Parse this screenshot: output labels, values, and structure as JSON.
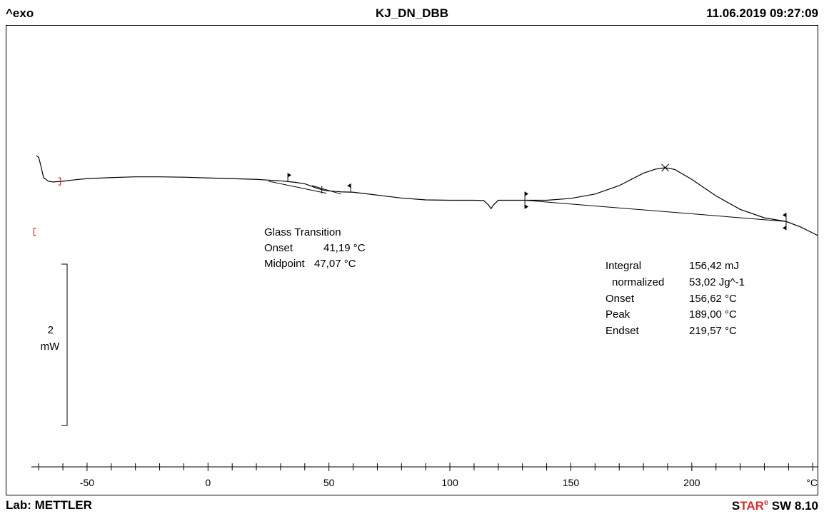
{
  "header": {
    "exo": "^exo",
    "title": "KJ_DN_DBB",
    "datetime": "11.06.2019 09:27:09"
  },
  "footer": {
    "lab": "Lab: METTLER",
    "star_prefix": "S",
    "star_red": "TAR",
    "star_sup": "e",
    "star_suffix": " SW 8.10"
  },
  "scale_bar": {
    "value": "2",
    "unit": "mW"
  },
  "glass_transition": {
    "title": "Glass Transition",
    "rows": [
      {
        "label": "Onset",
        "value": "41,19 °C"
      },
      {
        "label": "Midpoint",
        "value": "47,07 °C"
      }
    ]
  },
  "peak_analysis": {
    "rows": [
      {
        "label": "Integral",
        "value": "156,42 mJ"
      },
      {
        "label": "normalized",
        "value": "53,02 Jg^-1"
      },
      {
        "label": "Onset",
        "value": "156,62 °C"
      },
      {
        "label": "Peak",
        "value": "189,00 °C"
      },
      {
        "label": "Endset",
        "value": "219,57 °C"
      }
    ]
  },
  "colors": {
    "curve": "#000000",
    "markers": "#d32f2f",
    "brand_red": "#d32f2f"
  },
  "chart_data": {
    "type": "line",
    "title": "KJ_DN_DBB",
    "xlabel": "°C",
    "ylabel": "^exo",
    "xlim": [
      -73,
      252
    ],
    "ylim": [
      -5.0,
      2.8
    ],
    "x_ticks": [
      -50,
      0,
      50,
      100,
      150,
      200
    ],
    "x_tick_labels": [
      "-50",
      "0",
      "50",
      "100",
      "150",
      "200"
    ],
    "series": [
      {
        "x": [
          -71,
          -70,
          -69,
          -68,
          -66,
          -64,
          -60,
          -55,
          -50,
          -40,
          -30,
          -20,
          -10,
          0,
          10,
          20,
          25,
          30,
          33,
          36,
          40,
          43,
          45,
          47,
          49,
          51,
          53,
          55,
          60,
          70,
          80,
          90,
          100,
          110,
          114,
          116,
          117,
          118,
          120,
          125,
          131,
          140,
          150,
          160,
          170,
          175,
          180,
          185,
          189,
          193,
          200,
          210,
          220,
          230,
          239,
          245,
          252
        ],
        "y": [
          0.5,
          0.45,
          0.2,
          -0.1,
          -0.2,
          -0.22,
          -0.2,
          -0.16,
          -0.13,
          -0.1,
          -0.08,
          -0.08,
          -0.09,
          -0.11,
          -0.13,
          -0.15,
          -0.17,
          -0.19,
          -0.21,
          -0.23,
          -0.27,
          -0.34,
          -0.39,
          -0.43,
          -0.46,
          -0.47,
          -0.48,
          -0.49,
          -0.5,
          -0.58,
          -0.66,
          -0.71,
          -0.72,
          -0.72,
          -0.73,
          -0.85,
          -0.95,
          -0.85,
          -0.72,
          -0.72,
          -0.72,
          -0.72,
          -0.67,
          -0.55,
          -0.32,
          -0.15,
          0.02,
          0.13,
          0.17,
          0.12,
          -0.15,
          -0.6,
          -0.97,
          -1.2,
          -1.3,
          -1.45,
          -1.68
        ]
      }
    ],
    "baseline": {
      "x": [
        131,
        239
      ],
      "y": [
        -0.72,
        -1.3
      ]
    },
    "peak_marker": {
      "x": 189,
      "y": 0.17
    },
    "integration_limits": [
      131,
      239
    ],
    "glass_transition_limits": [
      33,
      59
    ],
    "glass_transition_midpoint": 47.07,
    "evaluation_range": [
      -72,
      -61
    ],
    "scale_bar_mW": 2
  }
}
